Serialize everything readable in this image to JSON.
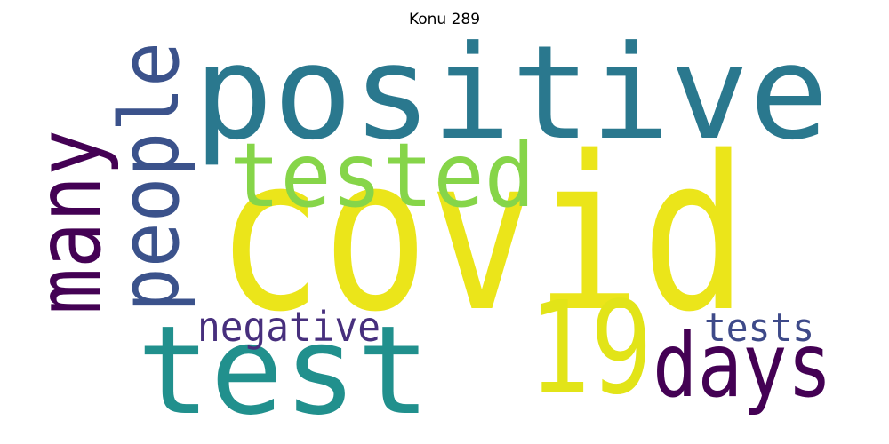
{
  "title": "Konu 289",
  "words": [
    {
      "id": "positive",
      "text": "positive",
      "color": "#2a788e"
    },
    {
      "id": "covid",
      "text": "covid",
      "color": "#ebe51a"
    },
    {
      "id": "tested",
      "text": "tested",
      "color": "#86d549"
    },
    {
      "id": "people",
      "text": "people",
      "color": "#3b528b"
    },
    {
      "id": "many",
      "text": "many",
      "color": "#440154"
    },
    {
      "id": "test",
      "text": "test",
      "color": "#21908d"
    },
    {
      "id": "19",
      "text": "19",
      "color": "#e2e418"
    },
    {
      "id": "days",
      "text": "days",
      "color": "#440154"
    },
    {
      "id": "negative",
      "text": "negative",
      "color": "#472f7d"
    },
    {
      "id": "tests",
      "text": "tests",
      "color": "#3e4a89"
    }
  ]
}
